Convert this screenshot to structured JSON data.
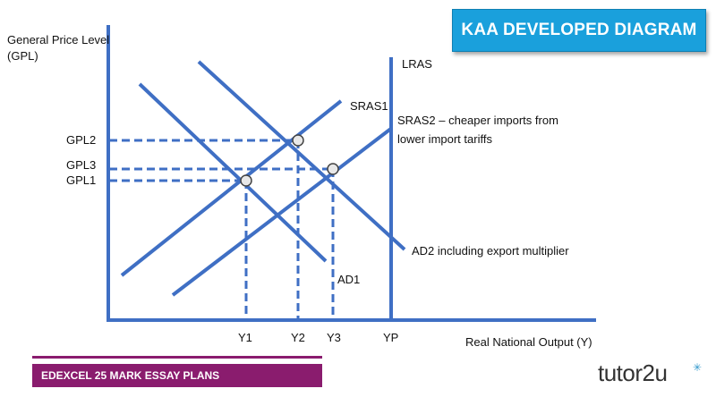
{
  "title": "KAA DEVELOPED DIAGRAM",
  "y_axis_label": "General Price Level (GPL)",
  "x_axis_label": "Real National Output (Y)",
  "curves": {
    "lras": "LRAS",
    "sras1": "SRAS1",
    "sras2_line1": "SRAS2 – cheaper imports from",
    "sras2_line2": "lower import tariffs",
    "ad1": "AD1",
    "ad2": "AD2 including export multiplier"
  },
  "price_levels": {
    "gpl1": "GPL1",
    "gpl2": "GPL2",
    "gpl3": "GPL3"
  },
  "outputs": {
    "y1": "Y1",
    "y2": "Y2",
    "y3": "Y3",
    "yp": "YP"
  },
  "footer": "EDEXCEL 25 MARK ESSAY PLANS",
  "logo": "tutor2u",
  "colors": {
    "line": "#3f6fc4",
    "title_bg": "#1aa0dc",
    "footer_bg": "#8a1c6e"
  }
}
